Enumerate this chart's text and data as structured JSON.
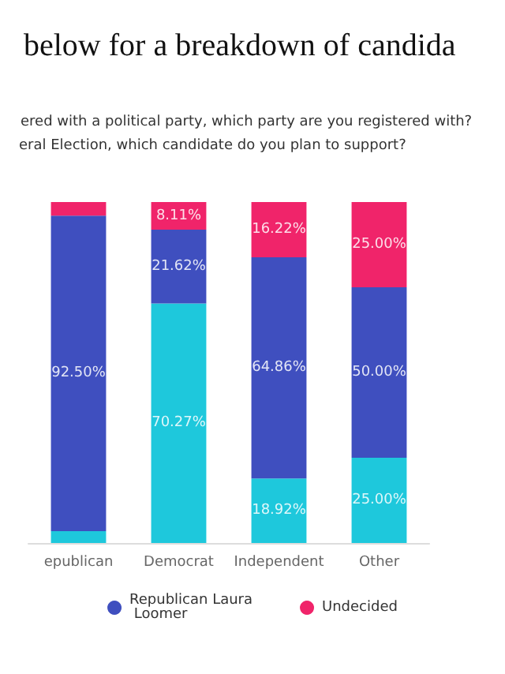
{
  "chart_data": {
    "type": "bar",
    "title": "below for a breakdown of candida",
    "subtitle": "ered with a political party, which party are you registered with?",
    "annotations": [
      "eral Election, which candidate do you plan to support?"
    ],
    "categories": [
      "epublican",
      "Democrat",
      "Independent",
      "Other"
    ],
    "stacked": true,
    "ylim": [
      0,
      100
    ],
    "tick_labels": "x",
    "legend": "bottom",
    "marker": "circle",
    "series": [
      {
        "color": "#1ec8dc",
        "values": [
          3.5,
          70.27,
          18.92,
          25.0
        ],
        "value_labels": [
          null,
          "70.27%",
          "18.92%",
          "25.00%"
        ]
      },
      {
        "name": "Republican Laura Loomer",
        "color": "#3f4fbf",
        "values": [
          92.5,
          21.62,
          64.86,
          50.0
        ],
        "value_labels": [
          "92.50%",
          "21.62%",
          "64.86%",
          "50.00%"
        ]
      },
      {
        "name": "Undecided",
        "color": "#f0246a",
        "values": [
          4.0,
          8.11,
          16.22,
          25.0
        ],
        "value_labels": [
          null,
          "8.11%",
          "16.22%",
          "25.00%"
        ]
      }
    ]
  }
}
